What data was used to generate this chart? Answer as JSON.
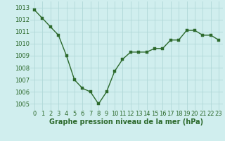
{
  "x": [
    0,
    1,
    2,
    3,
    4,
    5,
    6,
    7,
    8,
    9,
    10,
    11,
    12,
    13,
    14,
    15,
    16,
    17,
    18,
    19,
    20,
    21,
    22,
    23
  ],
  "y": [
    1012.8,
    1012.1,
    1011.4,
    1010.7,
    1009.0,
    1007.0,
    1006.3,
    1006.0,
    1005.0,
    1006.0,
    1007.7,
    1008.7,
    1009.3,
    1009.3,
    1009.3,
    1009.6,
    1009.6,
    1010.3,
    1010.3,
    1011.1,
    1011.1,
    1010.7,
    1010.7,
    1010.3
  ],
  "line_color": "#2d6a2d",
  "marker_color": "#2d6a2d",
  "bg_color": "#d0eeee",
  "grid_color": "#b0d8d8",
  "xlabel": "Graphe pression niveau de la mer (hPa)",
  "ylim": [
    1004.5,
    1013.5
  ],
  "xlim": [
    -0.5,
    23.5
  ],
  "yticks": [
    1005,
    1006,
    1007,
    1008,
    1009,
    1010,
    1011,
    1012,
    1013
  ],
  "xticks": [
    0,
    1,
    2,
    3,
    4,
    5,
    6,
    7,
    8,
    9,
    10,
    11,
    12,
    13,
    14,
    15,
    16,
    17,
    18,
    19,
    20,
    21,
    22,
    23
  ],
  "xlabel_fontsize": 7,
  "tick_fontsize": 6,
  "line_width": 1.0,
  "marker_size": 2.5
}
